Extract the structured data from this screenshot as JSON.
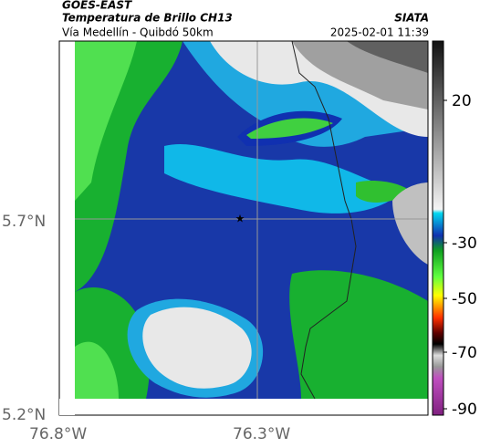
{
  "header": {
    "title": "GOES-EAST",
    "subtitle": "Temperatura de Brillo CH13",
    "location": "Vía Medellín - Quibdó 50km",
    "source": "SIATA",
    "datetime": "2025-02-01 11:39"
  },
  "map": {
    "lat_labels": [
      "5.7°N",
      "5.2°N"
    ],
    "lon_labels": [
      "76.8°W",
      "76.3°W"
    ]
  },
  "colorbar": {
    "ticks": [
      20,
      -30,
      -50,
      -70,
      -90
    ]
  }
}
